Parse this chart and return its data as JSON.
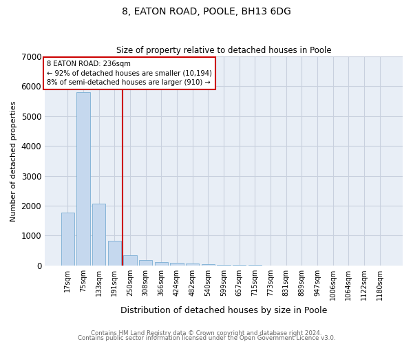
{
  "title": "8, EATON ROAD, POOLE, BH13 6DG",
  "subtitle": "Size of property relative to detached houses in Poole",
  "xlabel": "Distribution of detached houses by size in Poole",
  "ylabel": "Number of detached properties",
  "bar_labels": [
    "17sqm",
    "75sqm",
    "133sqm",
    "191sqm",
    "250sqm",
    "308sqm",
    "366sqm",
    "424sqm",
    "482sqm",
    "540sqm",
    "599sqm",
    "657sqm",
    "715sqm",
    "773sqm",
    "831sqm",
    "889sqm",
    "947sqm",
    "1006sqm",
    "1064sqm",
    "1122sqm",
    "1180sqm"
  ],
  "bar_values": [
    1780,
    5800,
    2060,
    830,
    340,
    190,
    110,
    80,
    60,
    40,
    20,
    15,
    10,
    0,
    0,
    0,
    0,
    0,
    0,
    0,
    0
  ],
  "bar_color": "#c5d8ee",
  "bar_edge_color": "#7aaed4",
  "vline_color": "#cc0000",
  "annotation_text": "8 EATON ROAD: 236sqm\n← 92% of detached houses are smaller (10,194)\n8% of semi-detached houses are larger (910) →",
  "annotation_box_color": "white",
  "annotation_box_edge": "#cc0000",
  "ylim": [
    0,
    7000
  ],
  "yticks": [
    0,
    1000,
    2000,
    3000,
    4000,
    5000,
    6000,
    7000
  ],
  "footer1": "Contains HM Land Registry data © Crown copyright and database right 2024.",
  "footer2": "Contains public sector information licensed under the Open Government Licence v3.0.",
  "grid_color": "#c8d0de",
  "background_color": "#e8eef6"
}
